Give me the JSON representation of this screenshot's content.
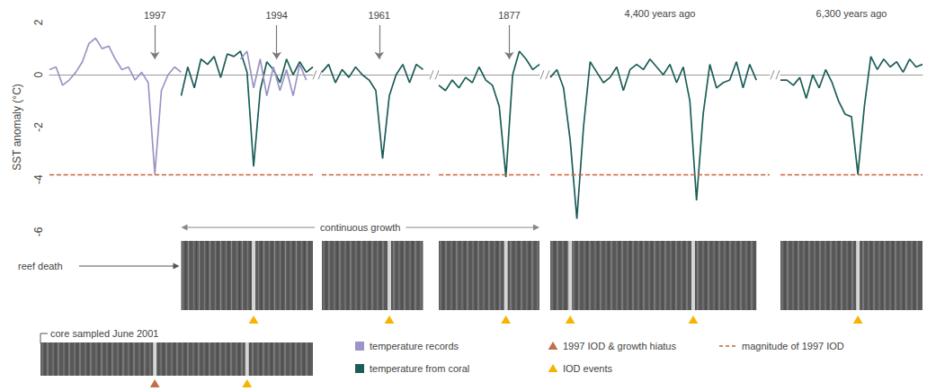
{
  "chart_data": {
    "type": "line",
    "ylabel": "SST anomaly (°C)",
    "ylim": [
      -6,
      2
    ],
    "yticks": [
      -6,
      -4,
      -2,
      0,
      2
    ],
    "grid": false,
    "tick_labels": "y",
    "legend": "bottom",
    "series": [
      {
        "name": "temperature records",
        "color": "#9b94c6"
      },
      {
        "name": "temperature from coral",
        "color": "#1b5e57"
      }
    ],
    "reference": {
      "name": "magnitude of 1997 IOD",
      "value": -3.8,
      "color": "#c8623c",
      "line_style": "dashed"
    },
    "markers": [
      {
        "name": "1997 IOD & growth hiatus",
        "color": "#c0704a",
        "marker": "triangle"
      },
      {
        "name": "IOD events",
        "color": "#f4b400",
        "marker": "triangle"
      }
    ],
    "labels": {
      "growth": "continuous growth",
      "reef_death": "reef death",
      "core": "core sampled June 2001"
    },
    "panels": [
      {
        "xlim": [
          0,
          80
        ],
        "x": [
          0,
          2,
          4,
          6,
          8,
          10,
          12,
          14,
          16,
          18,
          20,
          22,
          24,
          26,
          28,
          30,
          32,
          34,
          36,
          38,
          40,
          42,
          44,
          46,
          48,
          50,
          52,
          54,
          56,
          58,
          60,
          62,
          64,
          66,
          68,
          70,
          72,
          74,
          76,
          78,
          80
        ],
        "series": [
          {
            "name": "temperature records",
            "values": [
              0.2,
              0.3,
              -0.4,
              -0.2,
              0.1,
              0.5,
              1.2,
              1.4,
              1.0,
              1.1,
              0.6,
              0.2,
              0.3,
              -0.2,
              0.1,
              -0.3,
              -3.8,
              -0.6,
              0.0,
              0.3,
              0.1,
              null,
              null,
              null,
              null,
              null,
              null,
              null,
              null,
              0.6,
              0.9,
              -0.5,
              0.6,
              -0.8,
              0.3,
              -0.6,
              0.2,
              -0.8,
              0.4,
              -0.2,
              null
            ]
          },
          {
            "name": "temperature from coral",
            "values": [
              null,
              null,
              null,
              null,
              null,
              null,
              null,
              null,
              null,
              null,
              null,
              null,
              null,
              null,
              null,
              null,
              null,
              null,
              null,
              null,
              -0.8,
              0.3,
              -0.5,
              0.6,
              0.4,
              0.7,
              -0.1,
              0.8,
              0.7,
              0.9,
              0.1,
              -3.5,
              -0.6,
              0.5,
              0.2,
              -0.3,
              0.6,
              0.0,
              0.5,
              0.1,
              0.3
            ]
          }
        ],
        "events": [
          {
            "label": "1997",
            "x": 32
          },
          {
            "label": "1994",
            "x": 69
          }
        ],
        "iod_events": [
          62
        ],
        "core": {
          "hiatus": [
            32
          ],
          "iod_events": [
            60
          ]
        }
      },
      {
        "xlim": [
          0,
          32
        ],
        "x": [
          0,
          2,
          4,
          6,
          8,
          10,
          12,
          14,
          16,
          18,
          20,
          22,
          24,
          26,
          28,
          30
        ],
        "series": [
          {
            "name": "temperature from coral",
            "values": [
              0.1,
              0.4,
              -0.3,
              0.2,
              -0.1,
              0.3,
              0.0,
              -0.2,
              -0.6,
              -3.2,
              -0.8,
              0.0,
              0.4,
              -0.3,
              0.4,
              0.2
            ]
          }
        ],
        "events": [
          {
            "label": "1961",
            "x": 17
          }
        ],
        "iod_events": [
          20
        ]
      },
      {
        "xlim": [
          0,
          30
        ],
        "x": [
          0,
          2,
          4,
          6,
          8,
          10,
          12,
          14,
          16,
          18,
          20,
          22,
          24,
          26,
          28,
          30
        ],
        "series": [
          {
            "name": "temperature from coral",
            "values": [
              -0.4,
              -0.6,
              -0.2,
              -0.5,
              -0.1,
              -0.3,
              0.3,
              -0.2,
              -0.4,
              -1.2,
              -3.9,
              0.0,
              0.9,
              0.6,
              0.2,
              0.4
            ]
          }
        ],
        "events": [
          {
            "label": "1877",
            "x": 21
          }
        ],
        "iod_events": [
          20
        ]
      },
      {
        "title": "4,400 years ago",
        "xlim": [
          0,
          66
        ],
        "x": [
          0,
          2,
          4,
          6,
          8,
          10,
          12,
          14,
          16,
          18,
          20,
          22,
          24,
          26,
          28,
          30,
          32,
          34,
          36,
          38,
          40,
          42,
          44,
          46,
          48,
          50,
          52,
          54,
          56,
          58,
          60,
          62
        ],
        "series": [
          {
            "name": "temperature from coral",
            "values": [
              -0.1,
              0.2,
              -0.5,
              -2.5,
              -5.5,
              -2.0,
              0.5,
              0.1,
              -0.3,
              -0.1,
              0.3,
              -0.6,
              0.2,
              0.4,
              0.2,
              0.6,
              0.3,
              0.0,
              0.4,
              -0.3,
              0.3,
              -1.0,
              -4.8,
              -1.5,
              0.4,
              -0.5,
              -0.3,
              -0.2,
              0.5,
              -0.5,
              0.4,
              -0.2
            ]
          }
        ],
        "iod_events": [
          6,
          43
        ]
      },
      {
        "title": "6,300 years ago",
        "xlim": [
          0,
          44
        ],
        "x": [
          0,
          2,
          4,
          6,
          8,
          10,
          12,
          14,
          16,
          18,
          20,
          22,
          24,
          26,
          28,
          30,
          32,
          34,
          36,
          38,
          40,
          42,
          44
        ],
        "series": [
          {
            "name": "temperature from coral",
            "values": [
              -0.2,
              -0.2,
              -0.4,
              -0.1,
              -0.9,
              0.0,
              -0.5,
              0.2,
              -0.3,
              -1.0,
              -1.5,
              -1.6,
              -3.8,
              -1.2,
              0.7,
              0.2,
              0.6,
              0.3,
              0.5,
              0.1,
              0.6,
              0.3,
              0.4
            ]
          }
        ],
        "iod_events": [
          24
        ]
      }
    ]
  }
}
